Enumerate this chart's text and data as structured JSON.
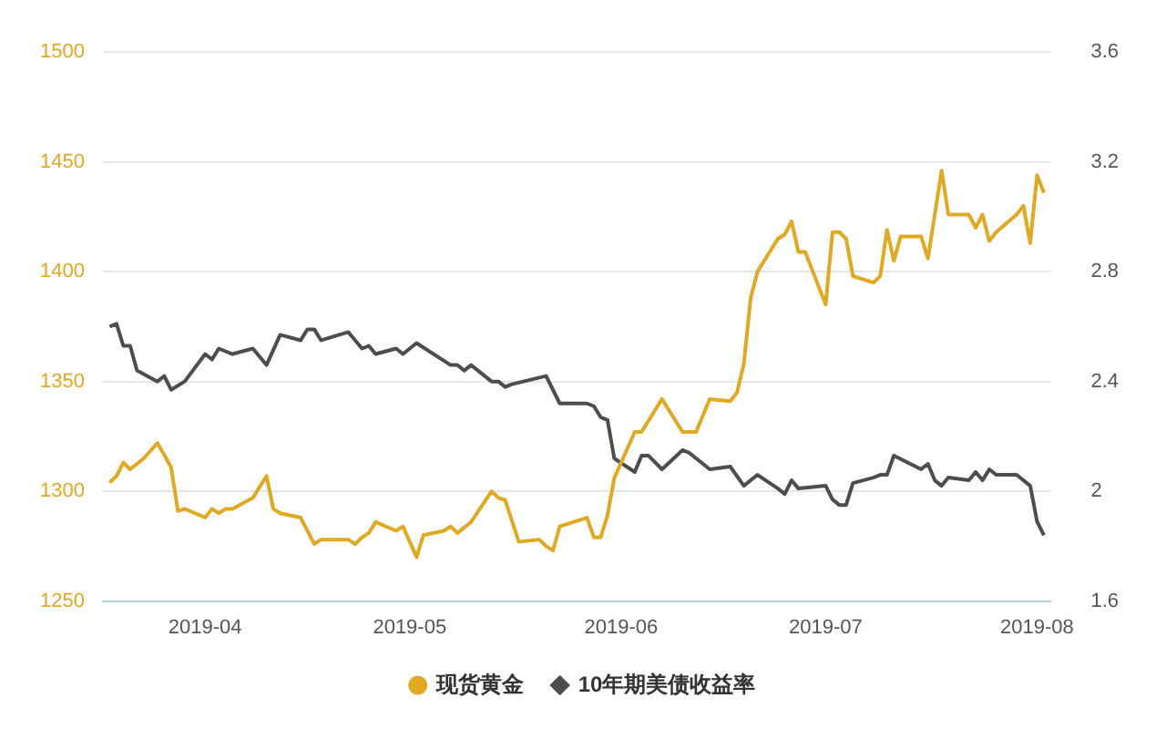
{
  "chart_data": {
    "type": "line",
    "legend": "bottom",
    "grid": "y",
    "xlim": [
      "2019-03-17",
      "2019-08-03"
    ],
    "xticks": [
      {
        "value": "2019-04-01",
        "label": "2019-04"
      },
      {
        "value": "2019-05-01",
        "label": "2019-05"
      },
      {
        "value": "2019-06-01",
        "label": "2019-06"
      },
      {
        "value": "2019-07-01",
        "label": "2019-07"
      },
      {
        "value": "2019-08-01",
        "label": "2019-08"
      }
    ],
    "ylim": [
      1250,
      1500
    ],
    "yticks": [
      1250,
      1300,
      1350,
      1400,
      1450,
      1500
    ],
    "y2lim": [
      1.6,
      3.6
    ],
    "y2ticks": [
      1.6,
      2,
      2.4,
      2.8,
      3.2,
      3.6
    ],
    "series": [
      {
        "name": "现货黄金",
        "color": "#e0a91f",
        "x": [
          "2019-03-18",
          "2019-03-19",
          "2019-03-20",
          "2019-03-21",
          "2019-03-23",
          "2019-03-25",
          "2019-03-27",
          "2019-03-28",
          "2019-03-29",
          "2019-04-01",
          "2019-04-02",
          "2019-04-03",
          "2019-04-04",
          "2019-04-05",
          "2019-04-08",
          "2019-04-09",
          "2019-04-10",
          "2019-04-11",
          "2019-04-12",
          "2019-04-15",
          "2019-04-16",
          "2019-04-17",
          "2019-04-18",
          "2019-04-22",
          "2019-04-23",
          "2019-04-24",
          "2019-04-25",
          "2019-04-26",
          "2019-04-29",
          "2019-04-30",
          "2019-05-02",
          "2019-05-03",
          "2019-05-06",
          "2019-05-07",
          "2019-05-08",
          "2019-05-10",
          "2019-05-13",
          "2019-05-14",
          "2019-05-15",
          "2019-05-17",
          "2019-05-20",
          "2019-05-21",
          "2019-05-22",
          "2019-05-23",
          "2019-05-27",
          "2019-05-28",
          "2019-05-29",
          "2019-05-30",
          "2019-05-31",
          "2019-06-03",
          "2019-06-04",
          "2019-06-07",
          "2019-06-10",
          "2019-06-12",
          "2019-06-14",
          "2019-06-17",
          "2019-06-18",
          "2019-06-19",
          "2019-06-20",
          "2019-06-21",
          "2019-06-24",
          "2019-06-25",
          "2019-06-26",
          "2019-06-27",
          "2019-06-28",
          "2019-06-30",
          "2019-07-01",
          "2019-07-02",
          "2019-07-03",
          "2019-07-04",
          "2019-07-05",
          "2019-07-08",
          "2019-07-09",
          "2019-07-10",
          "2019-07-11",
          "2019-07-12",
          "2019-07-15",
          "2019-07-16",
          "2019-07-18",
          "2019-07-19",
          "2019-07-22",
          "2019-07-23",
          "2019-07-24",
          "2019-07-25",
          "2019-07-26",
          "2019-07-29",
          "2019-07-30",
          "2019-07-31",
          "2019-08-01",
          "2019-08-02"
        ],
        "values": [
          1304,
          1307,
          1313,
          1310,
          1315,
          1322,
          1311,
          1291,
          1292,
          1288,
          1292,
          1290,
          1292,
          1292,
          1297,
          1302,
          1307,
          1292,
          1290,
          1288,
          1282,
          1276,
          1278,
          1278,
          1276,
          1279,
          1281,
          1286,
          1282,
          1284,
          1270,
          1280,
          1282,
          1284,
          1281,
          1286,
          1300,
          1297,
          1296,
          1277,
          1278,
          1275,
          1273,
          1284,
          1288,
          1279,
          1279,
          1289,
          1306,
          1327,
          1327,
          1342,
          1327,
          1327,
          1342,
          1341,
          1345,
          1358,
          1388,
          1400,
          1415,
          1417,
          1423,
          1409,
          1409,
          1393,
          1385,
          1418,
          1418,
          1415,
          1398,
          1395,
          1398,
          1419,
          1405,
          1416,
          1416,
          1406,
          1446,
          1426,
          1426,
          1420,
          1426,
          1414,
          1418,
          1426,
          1430,
          1413,
          1444,
          1436
        ]
      },
      {
        "name": "10年期美债收益率",
        "color": "#4d4d4d",
        "axis": "y2",
        "x": [
          "2019-03-18",
          "2019-03-19",
          "2019-03-20",
          "2019-03-21",
          "2019-03-22",
          "2019-03-25",
          "2019-03-26",
          "2019-03-27",
          "2019-03-29",
          "2019-04-01",
          "2019-04-02",
          "2019-04-03",
          "2019-04-05",
          "2019-04-08",
          "2019-04-10",
          "2019-04-12",
          "2019-04-15",
          "2019-04-16",
          "2019-04-17",
          "2019-04-18",
          "2019-04-22",
          "2019-04-24",
          "2019-04-25",
          "2019-04-26",
          "2019-04-29",
          "2019-04-30",
          "2019-05-02",
          "2019-05-07",
          "2019-05-08",
          "2019-05-09",
          "2019-05-10",
          "2019-05-13",
          "2019-05-14",
          "2019-05-15",
          "2019-05-16",
          "2019-05-21",
          "2019-05-23",
          "2019-05-27",
          "2019-05-28",
          "2019-05-29",
          "2019-05-30",
          "2019-05-31",
          "2019-06-03",
          "2019-06-04",
          "2019-06-05",
          "2019-06-07",
          "2019-06-10",
          "2019-06-11",
          "2019-06-14",
          "2019-06-17",
          "2019-06-19",
          "2019-06-21",
          "2019-06-24",
          "2019-06-25",
          "2019-06-26",
          "2019-06-27",
          "2019-07-01",
          "2019-07-02",
          "2019-07-03",
          "2019-07-04",
          "2019-07-05",
          "2019-07-08",
          "2019-07-09",
          "2019-07-10",
          "2019-07-11",
          "2019-07-15",
          "2019-07-16",
          "2019-07-17",
          "2019-07-18",
          "2019-07-19",
          "2019-07-22",
          "2019-07-23",
          "2019-07-24",
          "2019-07-25",
          "2019-07-26",
          "2019-07-29",
          "2019-07-31",
          "2019-08-01",
          "2019-08-02"
        ],
        "values": [
          2.6,
          2.61,
          2.53,
          2.53,
          2.44,
          2.4,
          2.42,
          2.37,
          2.4,
          2.5,
          2.48,
          2.52,
          2.5,
          2.52,
          2.46,
          2.57,
          2.55,
          2.59,
          2.59,
          2.55,
          2.58,
          2.52,
          2.53,
          2.5,
          2.52,
          2.5,
          2.54,
          2.46,
          2.46,
          2.44,
          2.46,
          2.4,
          2.4,
          2.38,
          2.39,
          2.42,
          2.32,
          2.32,
          2.31,
          2.27,
          2.26,
          2.12,
          2.07,
          2.13,
          2.13,
          2.08,
          2.15,
          2.14,
          2.08,
          2.09,
          2.02,
          2.06,
          2.01,
          1.99,
          2.04,
          2.01,
          2.02,
          1.97,
          1.95,
          1.95,
          2.03,
          2.05,
          2.06,
          2.06,
          2.13,
          2.08,
          2.1,
          2.04,
          2.02,
          2.05,
          2.04,
          2.07,
          2.04,
          2.08,
          2.06,
          2.06,
          2.02,
          1.89,
          1.84
        ]
      }
    ]
  }
}
